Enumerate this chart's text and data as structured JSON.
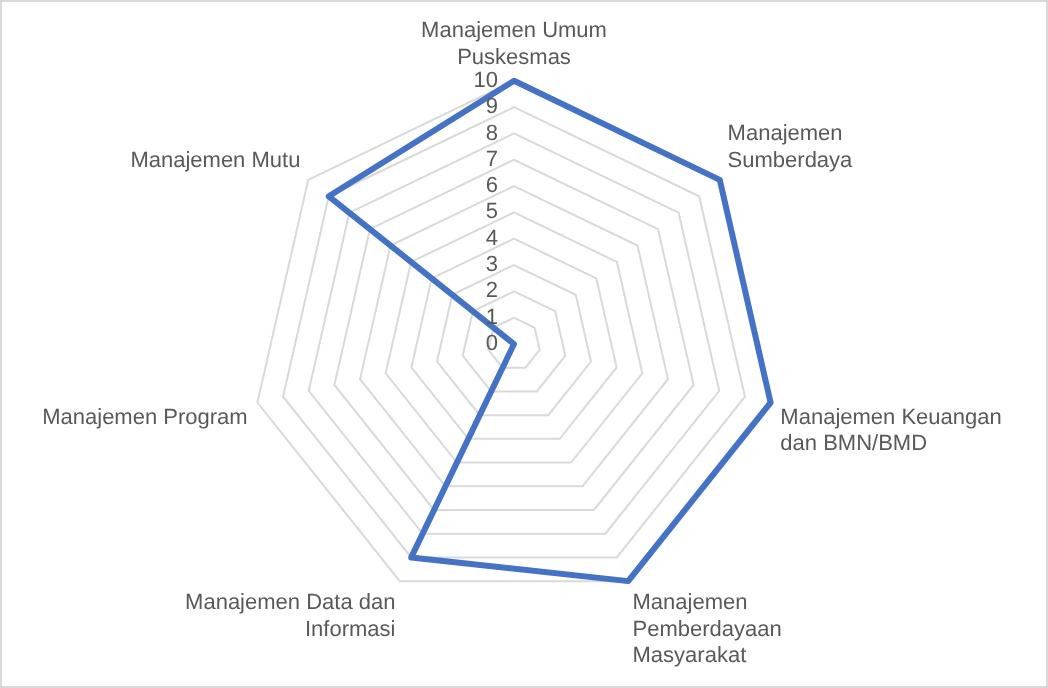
{
  "chart_data": {
    "type": "radar",
    "categories": [
      "Manajemen Umum Puskesmas",
      "Manajemen Sumberdaya",
      "Manajemen Keuangan dan BMN/BMD",
      "Manajemen Pemberdayaan Masyarakat",
      "Manajemen Data dan Informasi",
      "Manajemen Program",
      "Manajemen Mutu"
    ],
    "series": [
      {
        "color": "#4472c4",
        "values": [
          10,
          10,
          10,
          10,
          9,
          0,
          9
        ]
      }
    ],
    "ylim": [
      0,
      10
    ],
    "yticks": [
      0,
      1,
      2,
      3,
      4,
      5,
      6,
      7,
      8,
      9,
      10
    ],
    "grid": true,
    "legend": false,
    "marker": "none"
  }
}
